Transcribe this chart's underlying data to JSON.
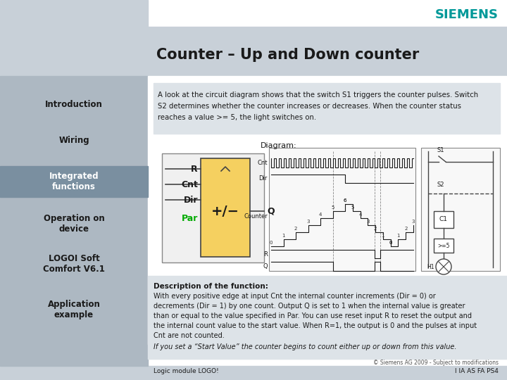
{
  "title": "Counter – Up and Down counter",
  "siemens_color": "#009999",
  "bg_color": "#ffffff",
  "header_bg": "#c8d0d8",
  "sidebar_bg": "#adb8c2",
  "sidebar_highlight_bg": "#7a8fa0",
  "content_bg": "#dde3e8",
  "intro_text_line1": "A look at the circuit diagram shows that the switch S1 triggers the counter pulses. Switch",
  "intro_text_line2": "S2 determines whether the counter increases or decreases. When the counter status",
  "intro_text_line3": "reaches a value >= 5, the light switches on.",
  "sidebar_items": [
    "Introduction",
    "Wiring",
    "Integrated\nfunctions",
    "Operation on\ndevice",
    "LOGOI Soft\nComfort V6.1",
    "Application\nexample"
  ],
  "sidebar_highlight_idx": 2,
  "desc_title": "Description of the function:",
  "desc_lines": [
    "With every positive edge at input Cnt the internal counter increments (Dir = 0) or",
    "decrements (Dir = 1) by one count. Output Q is set to 1 when the internal value is greater",
    "than or equal to the value specified in Par. You can use reset input R to reset the output and",
    "the internal count value to the start value. When R=1, the output is 0 and the pulses at input",
    "Cnt are not counted."
  ],
  "desc_italic": "If you set a “Start Value” the counter begins to count either up or down from this value.",
  "footer_left": "Logic module LOGO!",
  "footer_right": "I IA AS FA PS4",
  "footer_copy": "© Siemens AG 2009 - Subject to modifications",
  "diagram_label": "Diagram:"
}
